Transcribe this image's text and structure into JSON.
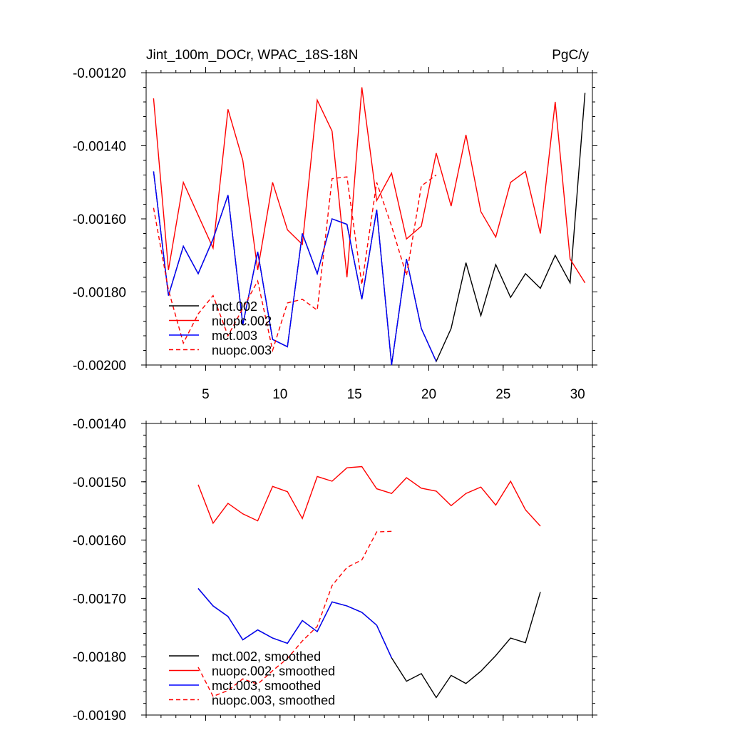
{
  "chart_data": [
    {
      "type": "line",
      "title_left": "Jint_100m_DOCr, WPAC_18S-18N",
      "title_right": "PgC/y",
      "xlabel": "",
      "ylabel": "",
      "xlim": [
        1,
        31
      ],
      "ylim": [
        -0.002,
        -0.0012
      ],
      "xticks": [
        5,
        10,
        15,
        20,
        25,
        30
      ],
      "xtick_labels": [
        "5",
        "10",
        "15",
        "20",
        "25",
        "30"
      ],
      "yticks": [
        -0.0012,
        -0.0014,
        -0.0016,
        -0.0018,
        -0.002
      ],
      "ytick_labels": [
        "-0.00120",
        "-0.00140",
        "-0.00160",
        "-0.00180",
        "-0.00200"
      ],
      "legend_position": "bottom-left",
      "series": [
        {
          "name": "mct.002",
          "color": "#000000",
          "dash": "solid",
          "x": [
            1.5,
            2.5,
            3.5,
            4.5,
            5.5,
            6.5,
            7.5,
            8.5,
            9.5,
            10.5,
            11.5,
            12.5,
            13.5,
            14.5,
            15.5,
            16.5,
            17.5,
            18.5,
            19.5,
            20.5,
            21.5,
            22.5,
            23.5,
            24.5,
            25.5,
            26.5,
            27.5,
            28.5,
            29.5,
            30.5
          ],
          "values": [
            -0.00147,
            -0.00181,
            -0.001675,
            -0.00175,
            -0.001655,
            -0.001535,
            -0.00189,
            -0.00169,
            -0.00193,
            -0.00195,
            -0.00164,
            -0.00175,
            -0.0016,
            -0.001615,
            -0.00182,
            -0.001575,
            -0.002,
            -0.00171,
            -0.0019,
            -0.00199,
            -0.0019,
            -0.00172,
            -0.001865,
            -0.001725,
            -0.001815,
            -0.00175,
            -0.00179,
            -0.0017,
            -0.001775,
            -0.001255
          ]
        },
        {
          "name": "nuopc.002",
          "color": "#ff0000",
          "dash": "solid",
          "x": [
            1.5,
            2.5,
            3.5,
            4.5,
            5.5,
            6.5,
            7.5,
            8.5,
            9.5,
            10.5,
            11.5,
            12.5,
            13.5,
            14.5,
            15.5,
            16.5,
            17.5,
            18.5,
            19.5,
            20.5,
            21.5,
            22.5,
            23.5,
            24.5,
            25.5,
            26.5,
            27.5,
            28.5,
            29.5,
            30.5
          ],
          "values": [
            -0.00127,
            -0.00174,
            -0.0015,
            -0.00159,
            -0.00168,
            -0.0013,
            -0.00144,
            -0.00174,
            -0.0015,
            -0.00163,
            -0.00167,
            -0.001275,
            -0.00136,
            -0.00176,
            -0.00124,
            -0.00155,
            -0.001475,
            -0.001655,
            -0.00162,
            -0.00142,
            -0.001565,
            -0.00137,
            -0.00158,
            -0.00165,
            -0.0015,
            -0.00147,
            -0.00164,
            -0.00128,
            -0.00171,
            -0.001775
          ]
        },
        {
          "name": "mct.003",
          "color": "#0000ff",
          "dash": "solid",
          "x": [
            1.5,
            2.5,
            3.5,
            4.5,
            5.5,
            6.5,
            7.5,
            8.5,
            9.5,
            10.5,
            11.5,
            12.5,
            13.5,
            14.5,
            15.5,
            16.5,
            17.5,
            18.5,
            19.5,
            20.5
          ],
          "values": [
            -0.00147,
            -0.00181,
            -0.001675,
            -0.00175,
            -0.001655,
            -0.001535,
            -0.00189,
            -0.00169,
            -0.00193,
            -0.00195,
            -0.00164,
            -0.00175,
            -0.0016,
            -0.001615,
            -0.00182,
            -0.001575,
            -0.002,
            -0.00171,
            -0.0019,
            -0.00199
          ]
        },
        {
          "name": "nuopc.003",
          "color": "#ff0000",
          "dash": "dashed",
          "x": [
            1.5,
            2.5,
            3.5,
            4.5,
            5.5,
            6.5,
            7.5,
            8.5,
            9.5,
            10.5,
            11.5,
            12.5,
            13.5,
            14.5,
            15.5,
            16.5,
            17.5,
            18.5,
            19.5,
            20.5
          ],
          "values": [
            -0.00157,
            -0.001795,
            -0.00194,
            -0.00186,
            -0.00181,
            -0.00192,
            -0.001845,
            -0.00177,
            -0.00196,
            -0.00183,
            -0.00182,
            -0.00185,
            -0.00149,
            -0.001485,
            -0.00178,
            -0.0015,
            -0.00162,
            -0.001755,
            -0.00151,
            -0.00148
          ]
        }
      ]
    },
    {
      "type": "line",
      "title_left": "",
      "title_right": "",
      "xlabel": "",
      "ylabel": "",
      "xlim": [
        1,
        31
      ],
      "ylim": [
        -0.0019,
        -0.0014
      ],
      "xticks": [
        5,
        10,
        15,
        20,
        25,
        30
      ],
      "xtick_labels": [],
      "yticks": [
        -0.0014,
        -0.0015,
        -0.0016,
        -0.0017,
        -0.0018,
        -0.0019
      ],
      "ytick_labels": [
        "-0.00140",
        "-0.00150",
        "-0.00160",
        "-0.00170",
        "-0.00180",
        "-0.00190"
      ],
      "legend_position": "bottom-left",
      "series": [
        {
          "name": "mct.002, smoothed",
          "color": "#000000",
          "dash": "solid",
          "x": [
            4.5,
            5.5,
            6.5,
            7.5,
            8.5,
            9.5,
            10.5,
            11.5,
            12.5,
            13.5,
            14.5,
            15.5,
            16.5,
            17.5,
            18.5,
            19.5,
            20.5,
            21.5,
            22.5,
            23.5,
            24.5,
            25.5,
            26.5,
            27.5
          ],
          "values": [
            -0.001683,
            -0.001713,
            -0.001731,
            -0.001771,
            -0.001754,
            -0.001768,
            -0.001777,
            -0.001738,
            -0.001757,
            -0.001706,
            -0.001713,
            -0.001724,
            -0.001746,
            -0.001802,
            -0.001842,
            -0.001829,
            -0.00187,
            -0.001832,
            -0.001846,
            -0.001825,
            -0.001798,
            -0.001768,
            -0.001776,
            -0.001689
          ]
        },
        {
          "name": "nuopc.002, smoothed",
          "color": "#ff0000",
          "dash": "solid",
          "x": [
            4.5,
            5.5,
            6.5,
            7.5,
            8.5,
            9.5,
            10.5,
            11.5,
            12.5,
            13.5,
            14.5,
            15.5,
            16.5,
            17.5,
            18.5,
            19.5,
            20.5,
            21.5,
            22.5,
            23.5,
            24.5,
            25.5,
            26.5,
            27.5
          ],
          "values": [
            -0.001505,
            -0.001571,
            -0.001537,
            -0.001555,
            -0.001567,
            -0.001508,
            -0.001517,
            -0.001563,
            -0.001491,
            -0.001499,
            -0.001476,
            -0.001474,
            -0.001512,
            -0.00152,
            -0.001493,
            -0.001511,
            -0.001516,
            -0.001541,
            -0.00152,
            -0.001509,
            -0.00154,
            -0.001499,
            -0.001548,
            -0.001576
          ]
        },
        {
          "name": "mct.003, smoothed",
          "color": "#0000ff",
          "dash": "solid",
          "x": [
            4.5,
            5.5,
            6.5,
            7.5,
            8.5,
            9.5,
            10.5,
            11.5,
            12.5,
            13.5,
            14.5,
            15.5,
            16.5,
            17.5
          ],
          "values": [
            -0.001683,
            -0.001713,
            -0.001731,
            -0.001771,
            -0.001754,
            -0.001768,
            -0.001777,
            -0.001738,
            -0.001757,
            -0.001706,
            -0.001713,
            -0.001724,
            -0.001746,
            -0.001802
          ]
        },
        {
          "name": "nuopc.003, smoothed",
          "color": "#ff0000",
          "dash": "dashed",
          "x": [
            4.5,
            5.5,
            6.5,
            7.5,
            8.5,
            9.5,
            10.5,
            11.5,
            12.5,
            13.5,
            14.5,
            15.5,
            16.5,
            17.5
          ],
          "values": [
            -0.001818,
            -0.001868,
            -0.001858,
            -0.001838,
            -0.001847,
            -0.001824,
            -0.001803,
            -0.001773,
            -0.001748,
            -0.001678,
            -0.001647,
            -0.001634,
            -0.001586,
            -0.001585
          ]
        }
      ]
    }
  ]
}
